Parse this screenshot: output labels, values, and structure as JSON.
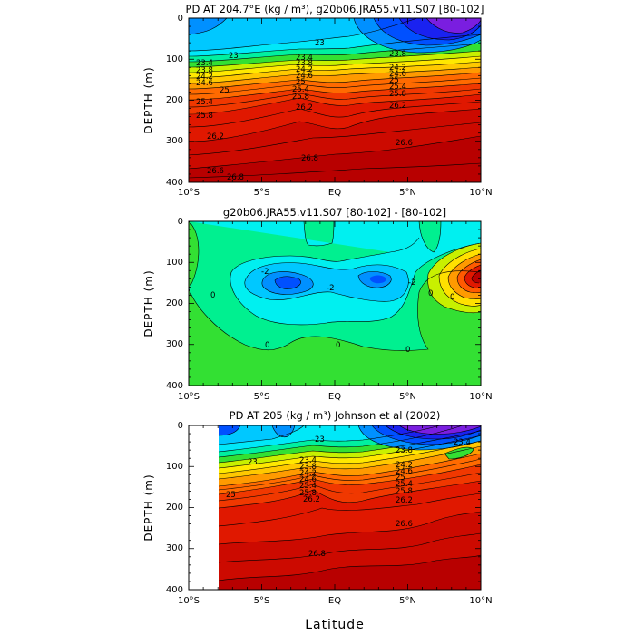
{
  "chart_data": [
    {
      "type": "heatmap",
      "title": "PD AT 204.7°E (kg / m³), g20b06.JRA55.v11.S07 [80-102]",
      "ylabel": "DEPTH (m)",
      "xlabel": "",
      "x_ticks": [
        "10°S",
        "5°S",
        "EQ",
        "5°N",
        "10°N"
      ],
      "y_ticks": [
        "0",
        "100",
        "200",
        "300",
        "400"
      ],
      "xlim": [
        -10,
        10
      ],
      "ylim": [
        400,
        0
      ],
      "contour_labels": [
        "23",
        "23",
        "23.4",
        "23.8",
        "24.2",
        "24.6",
        "25",
        "25.4",
        "25.8",
        "26.2",
        "26.6",
        "26.8",
        "23.4",
        "23.8",
        "24.2",
        "24.6",
        "25",
        "25.4",
        "25.8",
        "26.2",
        "23.8",
        "24.2",
        "24.6",
        "25",
        "25.4",
        "25.8",
        "26.2",
        "26.6",
        "26.8"
      ]
    },
    {
      "type": "heatmap",
      "title": "g20b06.JRA55.v11.S07 [80-102]  -  [80-102]",
      "ylabel": "DEPTH (m)",
      "xlabel": "",
      "x_ticks": [
        "10°S",
        "5°S",
        "EQ",
        "5°N",
        "10°N"
      ],
      "y_ticks": [
        "0",
        "100",
        "200",
        "300",
        "400"
      ],
      "xlim": [
        -10,
        10
      ],
      "ylim": [
        400,
        0
      ],
      "contour_labels": [
        "-2",
        "0",
        "-2",
        "-2",
        "0",
        "0",
        "0",
        "0",
        "0"
      ]
    },
    {
      "type": "heatmap",
      "title": "PD AT 205 (kg / m³) Johnson et al (2002)",
      "ylabel": "DEPTH (m)",
      "xlabel": "Latitude",
      "x_ticks": [
        "10°S",
        "5°S",
        "EQ",
        "5°N",
        "10°N"
      ],
      "y_ticks": [
        "0",
        "100",
        "200",
        "300",
        "400"
      ],
      "xlim": [
        -10,
        10
      ],
      "ylim": [
        400,
        0
      ],
      "contour_labels": [
        "23",
        "23",
        "23.4",
        "23.8",
        "24.2",
        "24.6",
        "25",
        "25.4",
        "25.8",
        "26.2",
        "23.8",
        "24.2",
        "24.6",
        "25",
        "25.4",
        "25.8",
        "26.2",
        "26.6",
        "26.8",
        "23.4"
      ]
    }
  ],
  "colors": {
    "dark_red": "#b80000",
    "red": "#e01800",
    "orange_red": "#ff5a00",
    "orange": "#ff9a00",
    "yellow": "#ffe000",
    "yellow_green": "#c8f000",
    "green": "#33e033",
    "green_cyan": "#00f090",
    "cyan": "#00f0f0",
    "light_blue": "#00c8ff",
    "blue": "#0090ff",
    "deep_blue": "#0050ff",
    "navy": "#1a22f0",
    "purple": "#7a1ee0"
  }
}
